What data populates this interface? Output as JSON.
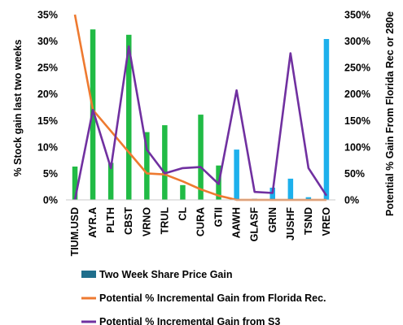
{
  "chart_data": {
    "type": "bar",
    "categories": [
      "TIUM.USD",
      "AYR.A",
      "PLTH",
      "CBST",
      "VRNO",
      "TRUL",
      "CL",
      "CURA",
      "GTII",
      "AAWH",
      "GLASF",
      "GRIN",
      "JUSHF",
      "TSND",
      "VREO"
    ],
    "ylabel": "% Stock gain last two weeks",
    "y2label": "Potential % Gain From Florida Rec or 280e",
    "ylim": [
      0,
      35
    ],
    "y2lim": [
      0,
      350
    ],
    "yticks": [
      "0%",
      "5%",
      "10%",
      "15%",
      "20%",
      "25%",
      "30%",
      "35%"
    ],
    "y2ticks": [
      "0%",
      "50%",
      "100%",
      "150%",
      "200%",
      "250%",
      "300%",
      "350%"
    ],
    "legend_position": "bottom",
    "grid": false,
    "colors": {
      "bar_florida": "#21BB45",
      "bar_other": "#1DB0EC",
      "legend_bar": "#1F6E8C",
      "florida_line": "#EE7A30",
      "s3_line": "#7030A0"
    },
    "series": [
      {
        "name": "Two Week Share Price Gain",
        "type": "bar",
        "axis": "left",
        "values": [
          6.3,
          32.2,
          7.0,
          31.2,
          12.8,
          14.1,
          2.8,
          16.1,
          6.5,
          9.5,
          0.2,
          2.3,
          4.0,
          0.5,
          30.4
        ],
        "bar_colors": [
          "green",
          "green",
          "green",
          "green",
          "green",
          "green",
          "green",
          "green",
          "green",
          "blue",
          "blue",
          "blue",
          "blue",
          "blue",
          "blue"
        ]
      },
      {
        "name": "Potential % Incremental Gain from Florida Rec.",
        "type": "line",
        "axis": "right",
        "values": [
          350,
          170,
          130,
          90,
          50,
          48,
          35,
          20,
          8,
          0,
          0,
          0,
          0,
          0,
          0
        ]
      },
      {
        "name": "Potential % Incremental Gain from S3",
        "type": "line",
        "axis": "right",
        "values": [
          0,
          170,
          60,
          290,
          95,
          50,
          60,
          62,
          30,
          207,
          15,
          13,
          277,
          60,
          8
        ]
      }
    ]
  }
}
